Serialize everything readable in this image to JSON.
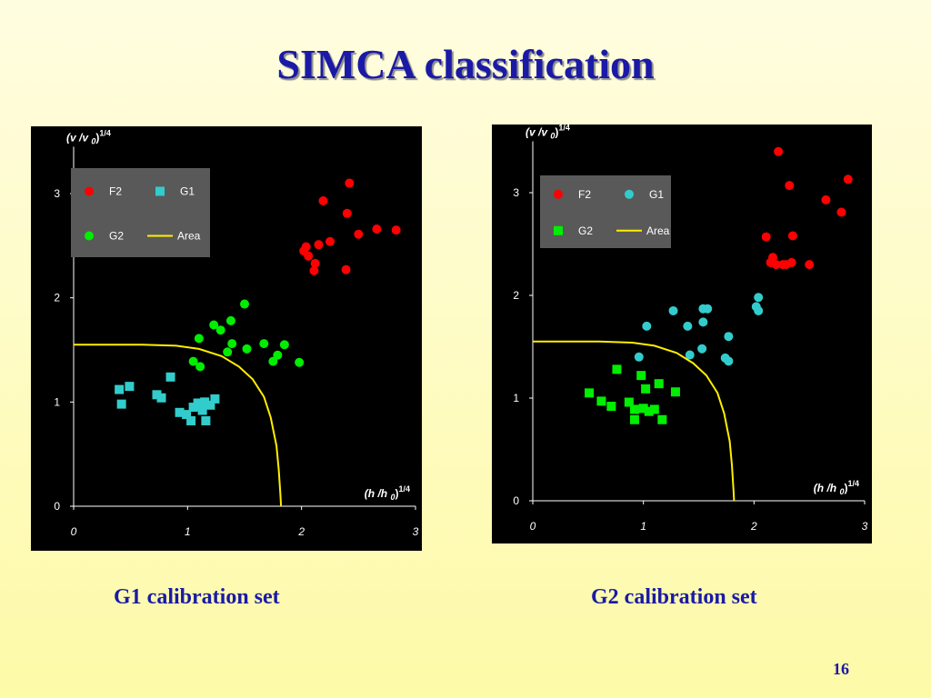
{
  "slide": {
    "title": "SIMCA classification",
    "page_number": "16"
  },
  "captions": {
    "left": "G1 calibration set",
    "right": "G2 calibration set"
  },
  "colors": {
    "background": "#fdfaa8",
    "title": "#1a1aa6",
    "panel": "#000000",
    "red": "#ff0000",
    "cyan": "#33cccc",
    "green": "#00ee00",
    "area_line": "#ffee00",
    "legend_bg": "#595959"
  },
  "chart_data": [
    {
      "type": "scatter",
      "title": "",
      "xlabel": "(h /h 0)1/4",
      "ylabel": "(v /v 0)1/4",
      "xlim": [
        0,
        3
      ],
      "ylim": [
        0,
        3.45
      ],
      "x_ticks": [
        "0",
        "1",
        "2",
        "3"
      ],
      "y_ticks": [
        "0",
        "1",
        "2",
        "3"
      ],
      "x_ticks_italic": true,
      "grid": false,
      "legend": "top-left",
      "series": [
        {
          "name": "F2",
          "marker": "circle",
          "color": "#ff0000",
          "points": [
            [
              2.19,
              2.93
            ],
            [
              2.42,
              3.1
            ],
            [
              2.4,
              2.81
            ],
            [
              2.02,
              2.45
            ],
            [
              2.04,
              2.49
            ],
            [
              2.06,
              2.4
            ],
            [
              2.15,
              2.51
            ],
            [
              2.25,
              2.54
            ],
            [
              2.12,
              2.33
            ],
            [
              2.11,
              2.26
            ],
            [
              2.5,
              2.61
            ],
            [
              2.66,
              2.66
            ],
            [
              2.83,
              2.65
            ],
            [
              2.39,
              2.27
            ]
          ]
        },
        {
          "name": "G1",
          "marker": "square",
          "color": "#33cccc",
          "points": [
            [
              0.4,
              1.12
            ],
            [
              0.49,
              1.15
            ],
            [
              0.42,
              0.98
            ],
            [
              0.73,
              1.07
            ],
            [
              0.77,
              1.04
            ],
            [
              0.85,
              1.24
            ],
            [
              0.93,
              0.9
            ],
            [
              0.99,
              0.88
            ],
            [
              1.03,
              0.82
            ],
            [
              1.05,
              0.95
            ],
            [
              1.09,
              0.99
            ],
            [
              1.13,
              0.92
            ],
            [
              1.12,
              0.97
            ],
            [
              1.15,
              1.0
            ],
            [
              1.2,
              0.97
            ],
            [
              1.24,
              1.03
            ],
            [
              1.16,
              0.82
            ]
          ]
        },
        {
          "name": "G2",
          "marker": "circle",
          "color": "#00ee00",
          "points": [
            [
              1.1,
              1.61
            ],
            [
              1.05,
              1.39
            ],
            [
              1.11,
              1.34
            ],
            [
              1.23,
              1.74
            ],
            [
              1.29,
              1.69
            ],
            [
              1.38,
              1.78
            ],
            [
              1.5,
              1.94
            ],
            [
              1.35,
              1.48
            ],
            [
              1.39,
              1.56
            ],
            [
              1.52,
              1.51
            ],
            [
              1.67,
              1.56
            ],
            [
              1.75,
              1.39
            ],
            [
              1.79,
              1.45
            ],
            [
              1.85,
              1.55
            ],
            [
              1.98,
              1.38
            ]
          ]
        },
        {
          "name": "Area",
          "marker": "line",
          "color": "#ffee00",
          "points": [
            [
              0,
              1.55
            ],
            [
              0.6,
              1.55
            ],
            [
              0.9,
              1.54
            ],
            [
              1.1,
              1.51
            ],
            [
              1.3,
              1.44
            ],
            [
              1.45,
              1.34
            ],
            [
              1.57,
              1.22
            ],
            [
              1.67,
              1.05
            ],
            [
              1.73,
              0.85
            ],
            [
              1.78,
              0.58
            ],
            [
              1.8,
              0.35
            ],
            [
              1.815,
              0.1
            ],
            [
              1.82,
              0.0
            ]
          ]
        }
      ]
    },
    {
      "type": "scatter",
      "title": "",
      "xlabel": "(h /h 0)1/4",
      "ylabel": "(v /v 0)1/4",
      "xlim": [
        0,
        3
      ],
      "ylim": [
        0,
        3.5
      ],
      "x_ticks": [
        "0",
        "1",
        "2",
        "3"
      ],
      "y_ticks": [
        "0",
        "1",
        "2",
        "3"
      ],
      "x_ticks_italic": true,
      "grid": false,
      "legend": "top-left",
      "series": [
        {
          "name": "F2",
          "marker": "circle",
          "color": "#ff0000",
          "points": [
            [
              2.22,
              3.4
            ],
            [
              2.32,
              3.07
            ],
            [
              2.85,
              3.13
            ],
            [
              2.65,
              2.93
            ],
            [
              2.79,
              2.81
            ],
            [
              2.11,
              2.57
            ],
            [
              2.35,
              2.58
            ],
            [
              2.17,
              2.37
            ],
            [
              2.15,
              2.32
            ],
            [
              2.2,
              2.3
            ],
            [
              2.26,
              2.3
            ],
            [
              2.29,
              2.3
            ],
            [
              2.34,
              2.32
            ],
            [
              2.5,
              2.3
            ]
          ]
        },
        {
          "name": "G1",
          "marker": "circle",
          "color": "#33cccc",
          "points": [
            [
              1.03,
              1.7
            ],
            [
              1.27,
              1.85
            ],
            [
              1.54,
              1.87
            ],
            [
              1.58,
              1.87
            ],
            [
              1.4,
              1.7
            ],
            [
              1.54,
              1.74
            ],
            [
              1.77,
              1.6
            ],
            [
              1.53,
              1.48
            ],
            [
              1.42,
              1.42
            ],
            [
              1.74,
              1.39
            ],
            [
              1.77,
              1.36
            ],
            [
              0.96,
              1.4
            ],
            [
              2.04,
              1.98
            ],
            [
              2.02,
              1.89
            ],
            [
              2.04,
              1.85
            ]
          ]
        },
        {
          "name": "G2",
          "marker": "square",
          "color": "#00ee00",
          "points": [
            [
              0.51,
              1.05
            ],
            [
              0.62,
              0.97
            ],
            [
              0.71,
              0.92
            ],
            [
              0.76,
              1.28
            ],
            [
              0.87,
              0.96
            ],
            [
              0.92,
              0.89
            ],
            [
              0.98,
              1.22
            ],
            [
              1.0,
              0.9
            ],
            [
              1.02,
              1.09
            ],
            [
              1.05,
              0.87
            ],
            [
              1.1,
              0.89
            ],
            [
              1.14,
              1.14
            ],
            [
              1.29,
              1.06
            ],
            [
              1.17,
              0.79
            ],
            [
              0.92,
              0.79
            ]
          ]
        },
        {
          "name": "Area",
          "marker": "line",
          "color": "#ffee00",
          "points": [
            [
              0,
              1.55
            ],
            [
              0.6,
              1.55
            ],
            [
              0.9,
              1.54
            ],
            [
              1.1,
              1.51
            ],
            [
              1.3,
              1.44
            ],
            [
              1.45,
              1.34
            ],
            [
              1.57,
              1.22
            ],
            [
              1.67,
              1.05
            ],
            [
              1.73,
              0.85
            ],
            [
              1.78,
              0.58
            ],
            [
              1.8,
              0.35
            ],
            [
              1.815,
              0.1
            ],
            [
              1.82,
              0.0
            ]
          ]
        }
      ]
    }
  ]
}
